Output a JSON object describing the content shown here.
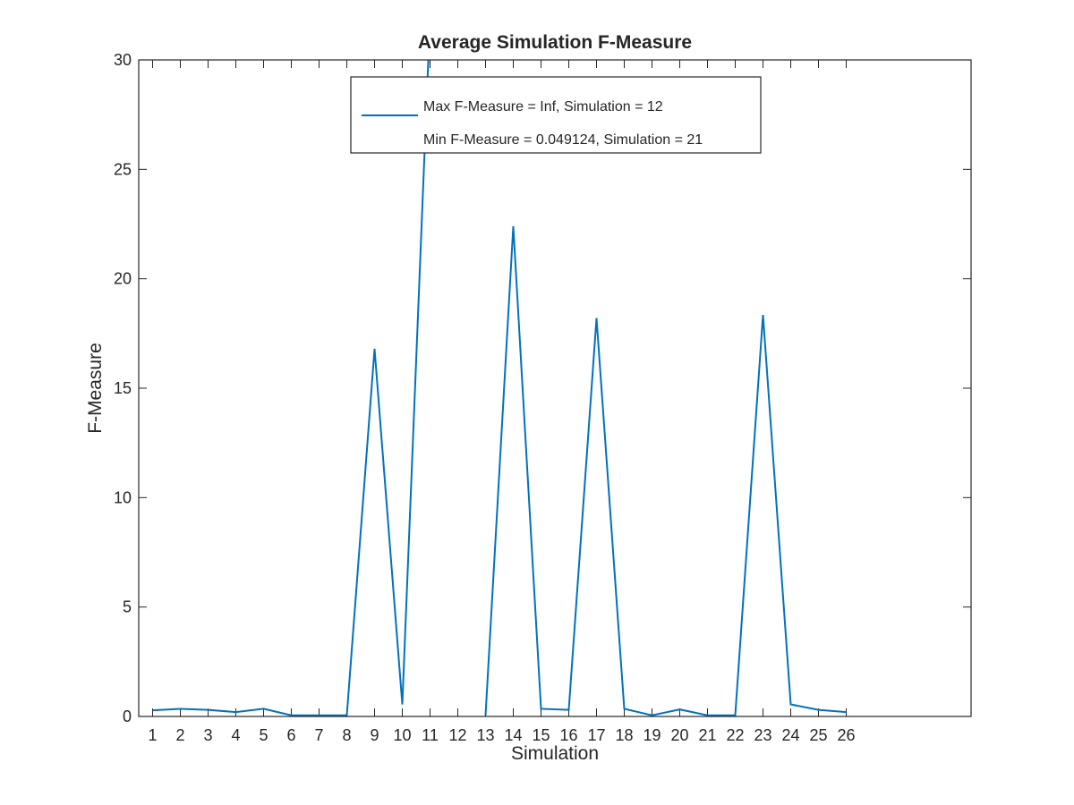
{
  "chart_data": {
    "type": "line",
    "title": "Average Simulation F-Measure",
    "xlabel": "Simulation",
    "ylabel": "F-Measure",
    "xlim": [
      0.5,
      30.5
    ],
    "ylim": [
      0,
      30
    ],
    "xticks": [
      1,
      2,
      3,
      4,
      5,
      6,
      7,
      8,
      9,
      10,
      11,
      12,
      13,
      14,
      15,
      16,
      17,
      18,
      19,
      20,
      21,
      22,
      23,
      24,
      25,
      26
    ],
    "yticks": [
      0,
      5,
      10,
      15,
      20,
      25,
      30
    ],
    "grid": false,
    "legend_position": "top-center",
    "legend": [
      "Max F-Measure = Inf, Simulation = 12",
      "Min F-Measure = 0.049124, Simulation = 21"
    ],
    "series": [
      {
        "color": "#0072bd",
        "x": [
          1,
          2,
          3,
          4,
          5,
          6,
          7,
          8,
          9,
          10,
          11,
          12,
          13,
          14,
          15,
          16,
          17,
          18,
          19,
          20,
          21,
          22,
          23,
          24,
          25,
          26
        ],
        "y": [
          0.28,
          0.35,
          0.3,
          0.2,
          0.35,
          0.05,
          0.05,
          0.05,
          16.8,
          0.55,
          32,
          null,
          0.05,
          22.4,
          0.35,
          0.3,
          18.2,
          0.35,
          0.05,
          0.32,
          0.05,
          0.05,
          18.35,
          0.55,
          0.3,
          0.2
        ]
      }
    ]
  }
}
